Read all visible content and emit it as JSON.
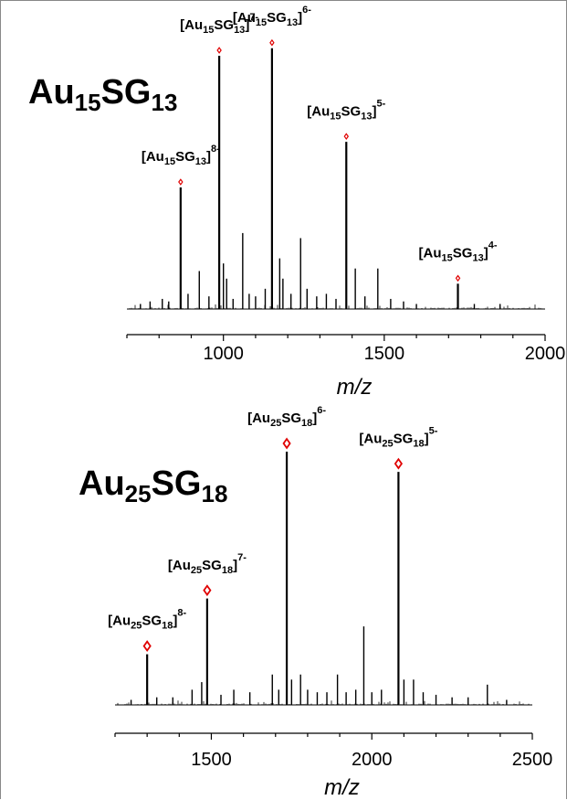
{
  "chart_data": [
    {
      "type": "line",
      "title": "Au15SG13",
      "title_parts": [
        "Au",
        "15",
        "SG",
        "13"
      ],
      "xlabel": "m/z",
      "ylabel": "",
      "xlim": [
        700,
        2000
      ],
      "ylim": [
        0,
        100
      ],
      "xticks": [
        "1000",
        "1500",
        "2000"
      ],
      "xtick_values": [
        1000,
        1500,
        2000
      ],
      "grid": false,
      "marker_color": "#e00000",
      "peaks": [
        {
          "x": 867,
          "y": 48,
          "label": [
            "[Au",
            "15",
            "SG",
            "13",
            "]",
            "8-"
          ]
        },
        {
          "x": 987,
          "y": 100,
          "label": [
            "[Au",
            "15",
            "SG",
            "13",
            "]",
            "7-"
          ]
        },
        {
          "x": 1151,
          "y": 103,
          "label": [
            "[Au",
            "15",
            "SG",
            "13",
            "]",
            "6-"
          ]
        },
        {
          "x": 1382,
          "y": 66,
          "label": [
            "[Au",
            "15",
            "SG",
            "13",
            "]",
            "5-"
          ]
        },
        {
          "x": 1729,
          "y": 10,
          "label": [
            "[Au",
            "15",
            "SG",
            "13",
            "]",
            "4-"
          ]
        }
      ],
      "minor_peaks": [
        {
          "x": 742,
          "y": 2
        },
        {
          "x": 772,
          "y": 3
        },
        {
          "x": 810,
          "y": 4
        },
        {
          "x": 830,
          "y": 3
        },
        {
          "x": 890,
          "y": 6
        },
        {
          "x": 925,
          "y": 15
        },
        {
          "x": 955,
          "y": 5
        },
        {
          "x": 1000,
          "y": 18
        },
        {
          "x": 1010,
          "y": 12
        },
        {
          "x": 1030,
          "y": 4
        },
        {
          "x": 1060,
          "y": 30
        },
        {
          "x": 1080,
          "y": 6
        },
        {
          "x": 1100,
          "y": 5
        },
        {
          "x": 1130,
          "y": 8
        },
        {
          "x": 1175,
          "y": 20
        },
        {
          "x": 1185,
          "y": 12
        },
        {
          "x": 1210,
          "y": 6
        },
        {
          "x": 1240,
          "y": 28
        },
        {
          "x": 1260,
          "y": 8
        },
        {
          "x": 1290,
          "y": 5
        },
        {
          "x": 1320,
          "y": 6
        },
        {
          "x": 1350,
          "y": 4
        },
        {
          "x": 1410,
          "y": 16
        },
        {
          "x": 1440,
          "y": 5
        },
        {
          "x": 1480,
          "y": 16
        },
        {
          "x": 1520,
          "y": 4
        },
        {
          "x": 1560,
          "y": 3
        },
        {
          "x": 1600,
          "y": 2
        },
        {
          "x": 1780,
          "y": 2
        },
        {
          "x": 1860,
          "y": 2
        }
      ]
    },
    {
      "type": "line",
      "title": "Au25SG18",
      "title_parts": [
        "Au",
        "25",
        "SG",
        "18"
      ],
      "xlabel": "m/z",
      "ylabel": "",
      "xlim": [
        1200,
        2500
      ],
      "ylim": [
        0,
        100
      ],
      "xticks": [
        "1500",
        "2000",
        "2500"
      ],
      "xtick_values": [
        1500,
        2000,
        2500
      ],
      "grid": false,
      "marker_color": "#e00000",
      "peaks": [
        {
          "x": 1300,
          "y": 20,
          "label": [
            "[Au",
            "25",
            "SG",
            "18",
            "]",
            "8-"
          ]
        },
        {
          "x": 1487,
          "y": 42,
          "label": [
            "[Au",
            "25",
            "SG",
            "18",
            "]",
            "7-"
          ]
        },
        {
          "x": 1735,
          "y": 100,
          "label": [
            "[Au",
            "25",
            "SG",
            "18",
            "]",
            "6-"
          ]
        },
        {
          "x": 2083,
          "y": 92,
          "label": [
            "[Au",
            "25",
            "SG",
            "18",
            "]",
            "5-"
          ]
        }
      ],
      "minor_peaks": [
        {
          "x": 1250,
          "y": 2
        },
        {
          "x": 1330,
          "y": 3
        },
        {
          "x": 1380,
          "y": 3
        },
        {
          "x": 1440,
          "y": 6
        },
        {
          "x": 1470,
          "y": 9
        },
        {
          "x": 1530,
          "y": 4
        },
        {
          "x": 1570,
          "y": 6
        },
        {
          "x": 1620,
          "y": 5
        },
        {
          "x": 1690,
          "y": 12
        },
        {
          "x": 1710,
          "y": 6
        },
        {
          "x": 1750,
          "y": 10
        },
        {
          "x": 1778,
          "y": 12
        },
        {
          "x": 1800,
          "y": 6
        },
        {
          "x": 1830,
          "y": 5
        },
        {
          "x": 1860,
          "y": 5
        },
        {
          "x": 1893,
          "y": 12
        },
        {
          "x": 1920,
          "y": 5
        },
        {
          "x": 1950,
          "y": 6
        },
        {
          "x": 1975,
          "y": 31
        },
        {
          "x": 2000,
          "y": 5
        },
        {
          "x": 2030,
          "y": 6
        },
        {
          "x": 2100,
          "y": 10
        },
        {
          "x": 2130,
          "y": 10
        },
        {
          "x": 2160,
          "y": 5
        },
        {
          "x": 2200,
          "y": 4
        },
        {
          "x": 2250,
          "y": 3
        },
        {
          "x": 2300,
          "y": 3
        },
        {
          "x": 2360,
          "y": 8
        },
        {
          "x": 2420,
          "y": 2
        }
      ]
    }
  ]
}
